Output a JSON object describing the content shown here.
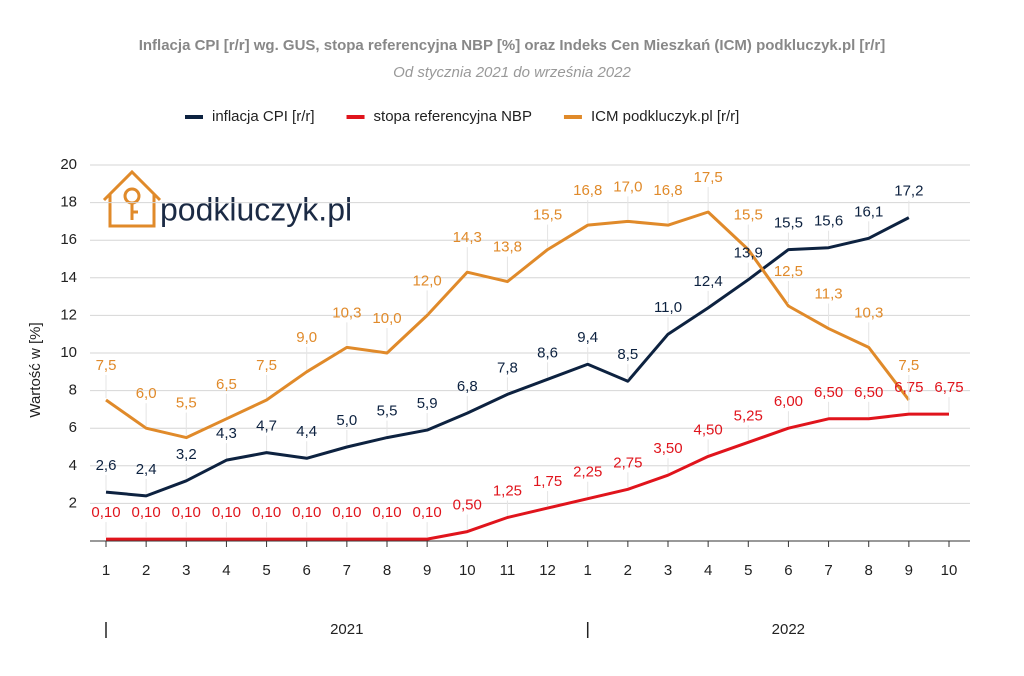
{
  "chart_data": {
    "type": "line",
    "title": "Inflacja CPI [r/r] wg. GUS, stopa referencyjna NBP [%] oraz Indeks Cen Mieszkań (ICM) podkluczyk.pl [r/r]",
    "subtitle": "Od stycznia 2021 do września 2022",
    "y_label": "Wartość w [%]",
    "watermark": "podkluczyk.pl",
    "categories": [
      "1",
      "2",
      "3",
      "4",
      "5",
      "6",
      "7",
      "8",
      "9",
      "10",
      "11",
      "12",
      "1",
      "2",
      "3",
      "4",
      "5",
      "6",
      "7",
      "8",
      "9",
      "10"
    ],
    "years": [
      "2021",
      "2022"
    ],
    "ylim": [
      0,
      20
    ],
    "yticks": [
      2,
      4,
      6,
      8,
      10,
      12,
      14,
      16,
      18,
      20
    ],
    "grid": true,
    "series": [
      {
        "name": "inflacja CPI [r/r]",
        "color": "#0d2240",
        "values": [
          2.6,
          2.4,
          3.2,
          4.3,
          4.7,
          4.4,
          5.0,
          5.5,
          5.9,
          6.8,
          7.8,
          8.6,
          9.4,
          8.5,
          11.0,
          12.4,
          13.9,
          15.5,
          15.6,
          16.1,
          17.2,
          null
        ],
        "value_labels": [
          "2,6",
          "2,4",
          "3,2",
          "4,3",
          "4,7",
          "4,4",
          "5,0",
          "5,5",
          "5,9",
          "6,8",
          "7,8",
          "8,6",
          "9,4",
          "8,5",
          "11,0",
          "12,4",
          "13,9",
          "15,5",
          "15,6",
          "16,1",
          "17,2",
          null
        ]
      },
      {
        "name": "stopa referencyjna NBP",
        "color": "#e0141c",
        "values": [
          0.1,
          0.1,
          0.1,
          0.1,
          0.1,
          0.1,
          0.1,
          0.1,
          0.1,
          0.5,
          1.25,
          1.75,
          2.25,
          2.75,
          3.5,
          4.5,
          5.25,
          6.0,
          6.5,
          6.5,
          6.75,
          6.75
        ],
        "value_labels": [
          "0,10",
          "0,10",
          "0,10",
          "0,10",
          "0,10",
          "0,10",
          "0,10",
          "0,10",
          "0,10",
          "0,50",
          "1,25",
          "1,75",
          "2,25",
          "2,75",
          "3,50",
          "4,50",
          "5,25",
          "6,00",
          "6,50",
          "6,50",
          "6,75",
          "6,75"
        ]
      },
      {
        "name": "ICM podkluczyk.pl [r/r]",
        "color": "#e08a2a",
        "values": [
          7.5,
          6.0,
          5.5,
          6.5,
          7.5,
          9.0,
          10.3,
          10.0,
          12.0,
          14.3,
          13.8,
          15.5,
          16.8,
          17.0,
          16.8,
          17.5,
          15.5,
          12.5,
          11.3,
          10.3,
          7.5,
          null
        ],
        "value_labels": [
          "7,5",
          "6,0",
          "5,5",
          "6,5",
          "7,5",
          "9,0",
          "10,3",
          "10,0",
          "12,0",
          "14,3",
          "13,8",
          "15,5",
          "16,8",
          "17,0",
          "16,8",
          "17,5",
          "15,5",
          "12,5",
          "11,3",
          "10,3",
          "7,5",
          null
        ]
      }
    ]
  }
}
